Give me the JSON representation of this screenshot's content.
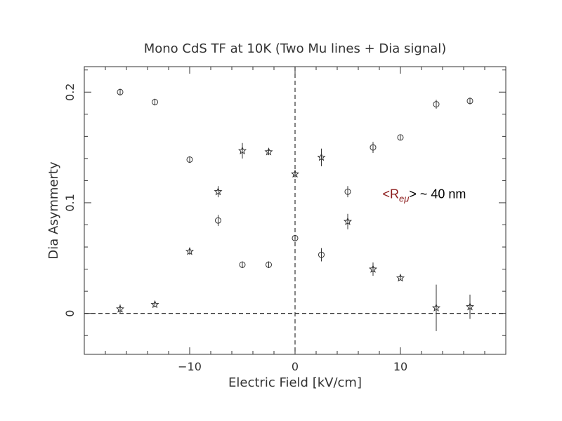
{
  "chart_data": {
    "type": "scatter",
    "title": "Mono CdS TF at 10K (Two Mu lines + Dia signal)",
    "xlabel": "Electric Field [kV/cm]",
    "ylabel": "Dia Asymmerty",
    "xlim": [
      -20,
      20
    ],
    "ylim": [
      -0.037,
      0.223
    ],
    "x_ticks": [
      {
        "value": -10,
        "label": "−10"
      },
      {
        "value": 0,
        "label": "0"
      },
      {
        "value": 10,
        "label": "10"
      }
    ],
    "y_ticks": [
      {
        "value": 0,
        "label": "0"
      },
      {
        "value": 0.1,
        "label": "0.1"
      },
      {
        "value": 0.2,
        "label": "0.2"
      }
    ],
    "reference_lines": {
      "x": 0,
      "y": 0
    },
    "series": [
      {
        "marker": "circle",
        "points": [
          {
            "x": -16.6,
            "y": 0.2,
            "err": 0.003
          },
          {
            "x": -13.3,
            "y": 0.191,
            "err": 0.003
          },
          {
            "x": -10.0,
            "y": 0.139,
            "err": 0.003
          },
          {
            "x": -7.3,
            "y": 0.084,
            "err": 0.005
          },
          {
            "x": -5.0,
            "y": 0.044,
            "err": 0.003
          },
          {
            "x": -2.5,
            "y": 0.044,
            "err": 0.003
          },
          {
            "x": 0.0,
            "y": 0.068,
            "err": 0.003
          },
          {
            "x": 2.5,
            "y": 0.053,
            "err": 0.006
          },
          {
            "x": 5.0,
            "y": 0.11,
            "err": 0.005
          },
          {
            "x": 7.4,
            "y": 0.15,
            "err": 0.005
          },
          {
            "x": 10.0,
            "y": 0.159,
            "err": 0.002
          },
          {
            "x": 13.4,
            "y": 0.189,
            "err": 0.004
          },
          {
            "x": 16.6,
            "y": 0.192,
            "err": 0.003
          }
        ]
      },
      {
        "marker": "star",
        "points": [
          {
            "x": -16.6,
            "y": 0.004,
            "err": 0.004
          },
          {
            "x": -13.3,
            "y": 0.008,
            "err": 0.002
          },
          {
            "x": -10.0,
            "y": 0.056,
            "err": 0.003
          },
          {
            "x": -7.3,
            "y": 0.11,
            "err": 0.005
          },
          {
            "x": -5.0,
            "y": 0.147,
            "err": 0.007
          },
          {
            "x": -2.5,
            "y": 0.146,
            "err": 0.003
          },
          {
            "x": 0.0,
            "y": 0.126,
            "err": 0.003
          },
          {
            "x": 2.5,
            "y": 0.141,
            "err": 0.008
          },
          {
            "x": 5.0,
            "y": 0.083,
            "err": 0.007
          },
          {
            "x": 7.4,
            "y": 0.04,
            "err": 0.006
          },
          {
            "x": 10.0,
            "y": 0.032,
            "err": 0.002
          },
          {
            "x": 13.4,
            "y": 0.005,
            "err": 0.021
          },
          {
            "x": 16.6,
            "y": 0.006,
            "err": 0.011
          }
        ]
      }
    ],
    "annotations": [
      {
        "id": "radius",
        "prefix": "<",
        "symbol": "R",
        "subscript": "eμ",
        "suffix": "> ~ 40 nm",
        "x": 8.3,
        "y": 0.104,
        "symbol_color": "#8b1a1a"
      }
    ],
    "grid": false,
    "legend": "none"
  }
}
